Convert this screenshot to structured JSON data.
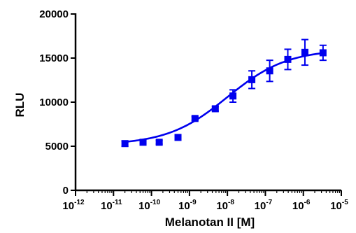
{
  "chart_data": {
    "type": "scatter",
    "title": "",
    "xlabel": "Melanotan II [M]",
    "ylabel": "RLU",
    "x_scale": "log",
    "xlim": [
      1e-12,
      1e-05
    ],
    "ylim": [
      0,
      20000
    ],
    "x_ticks": [
      {
        "base": "10",
        "exp": "-12",
        "value": 1e-12
      },
      {
        "base": "10",
        "exp": "-11",
        "value": 1e-11
      },
      {
        "base": "10",
        "exp": "-10",
        "value": 1e-10
      },
      {
        "base": "10",
        "exp": "-9",
        "value": 1e-09
      },
      {
        "base": "10",
        "exp": "-8",
        "value": 1e-08
      },
      {
        "base": "10",
        "exp": "-7",
        "value": 1e-07
      },
      {
        "base": "10",
        "exp": "-6",
        "value": 1e-06
      },
      {
        "base": "10",
        "exp": "-5",
        "value": 1e-05
      }
    ],
    "y_ticks": [
      "0",
      "5000",
      "10000",
      "15000",
      "20000"
    ],
    "y_tick_values": [
      0,
      5000,
      10000,
      15000,
      20000
    ],
    "grid": false,
    "legend": "none",
    "series": [
      {
        "color": "#0000ee",
        "marker": "square",
        "points": [
          {
            "x": 2e-11,
            "y": 5300,
            "err": 300
          },
          {
            "x": 6e-11,
            "y": 5450,
            "err": 150
          },
          {
            "x": 1.6e-10,
            "y": 5450,
            "err": 200
          },
          {
            "x": 5e-10,
            "y": 6000,
            "err": 250
          },
          {
            "x": 1.4e-09,
            "y": 8150,
            "err": 200
          },
          {
            "x": 4.8e-09,
            "y": 9250,
            "err": 250
          },
          {
            "x": 1.4e-08,
            "y": 10700,
            "err": 700
          },
          {
            "x": 4.4e-08,
            "y": 12550,
            "err": 1000
          },
          {
            "x": 1.3e-07,
            "y": 13550,
            "err": 1200
          },
          {
            "x": 3.9e-07,
            "y": 14850,
            "err": 1150
          },
          {
            "x": 1.1e-06,
            "y": 15650,
            "err": 1450
          },
          {
            "x": 3.3e-06,
            "y": 15600,
            "err": 850
          }
        ],
        "fit": {
          "model": "sigmoid",
          "bottom": 5150,
          "top": 16000,
          "logEC50": -8.0,
          "hill": 0.55
        }
      }
    ]
  }
}
